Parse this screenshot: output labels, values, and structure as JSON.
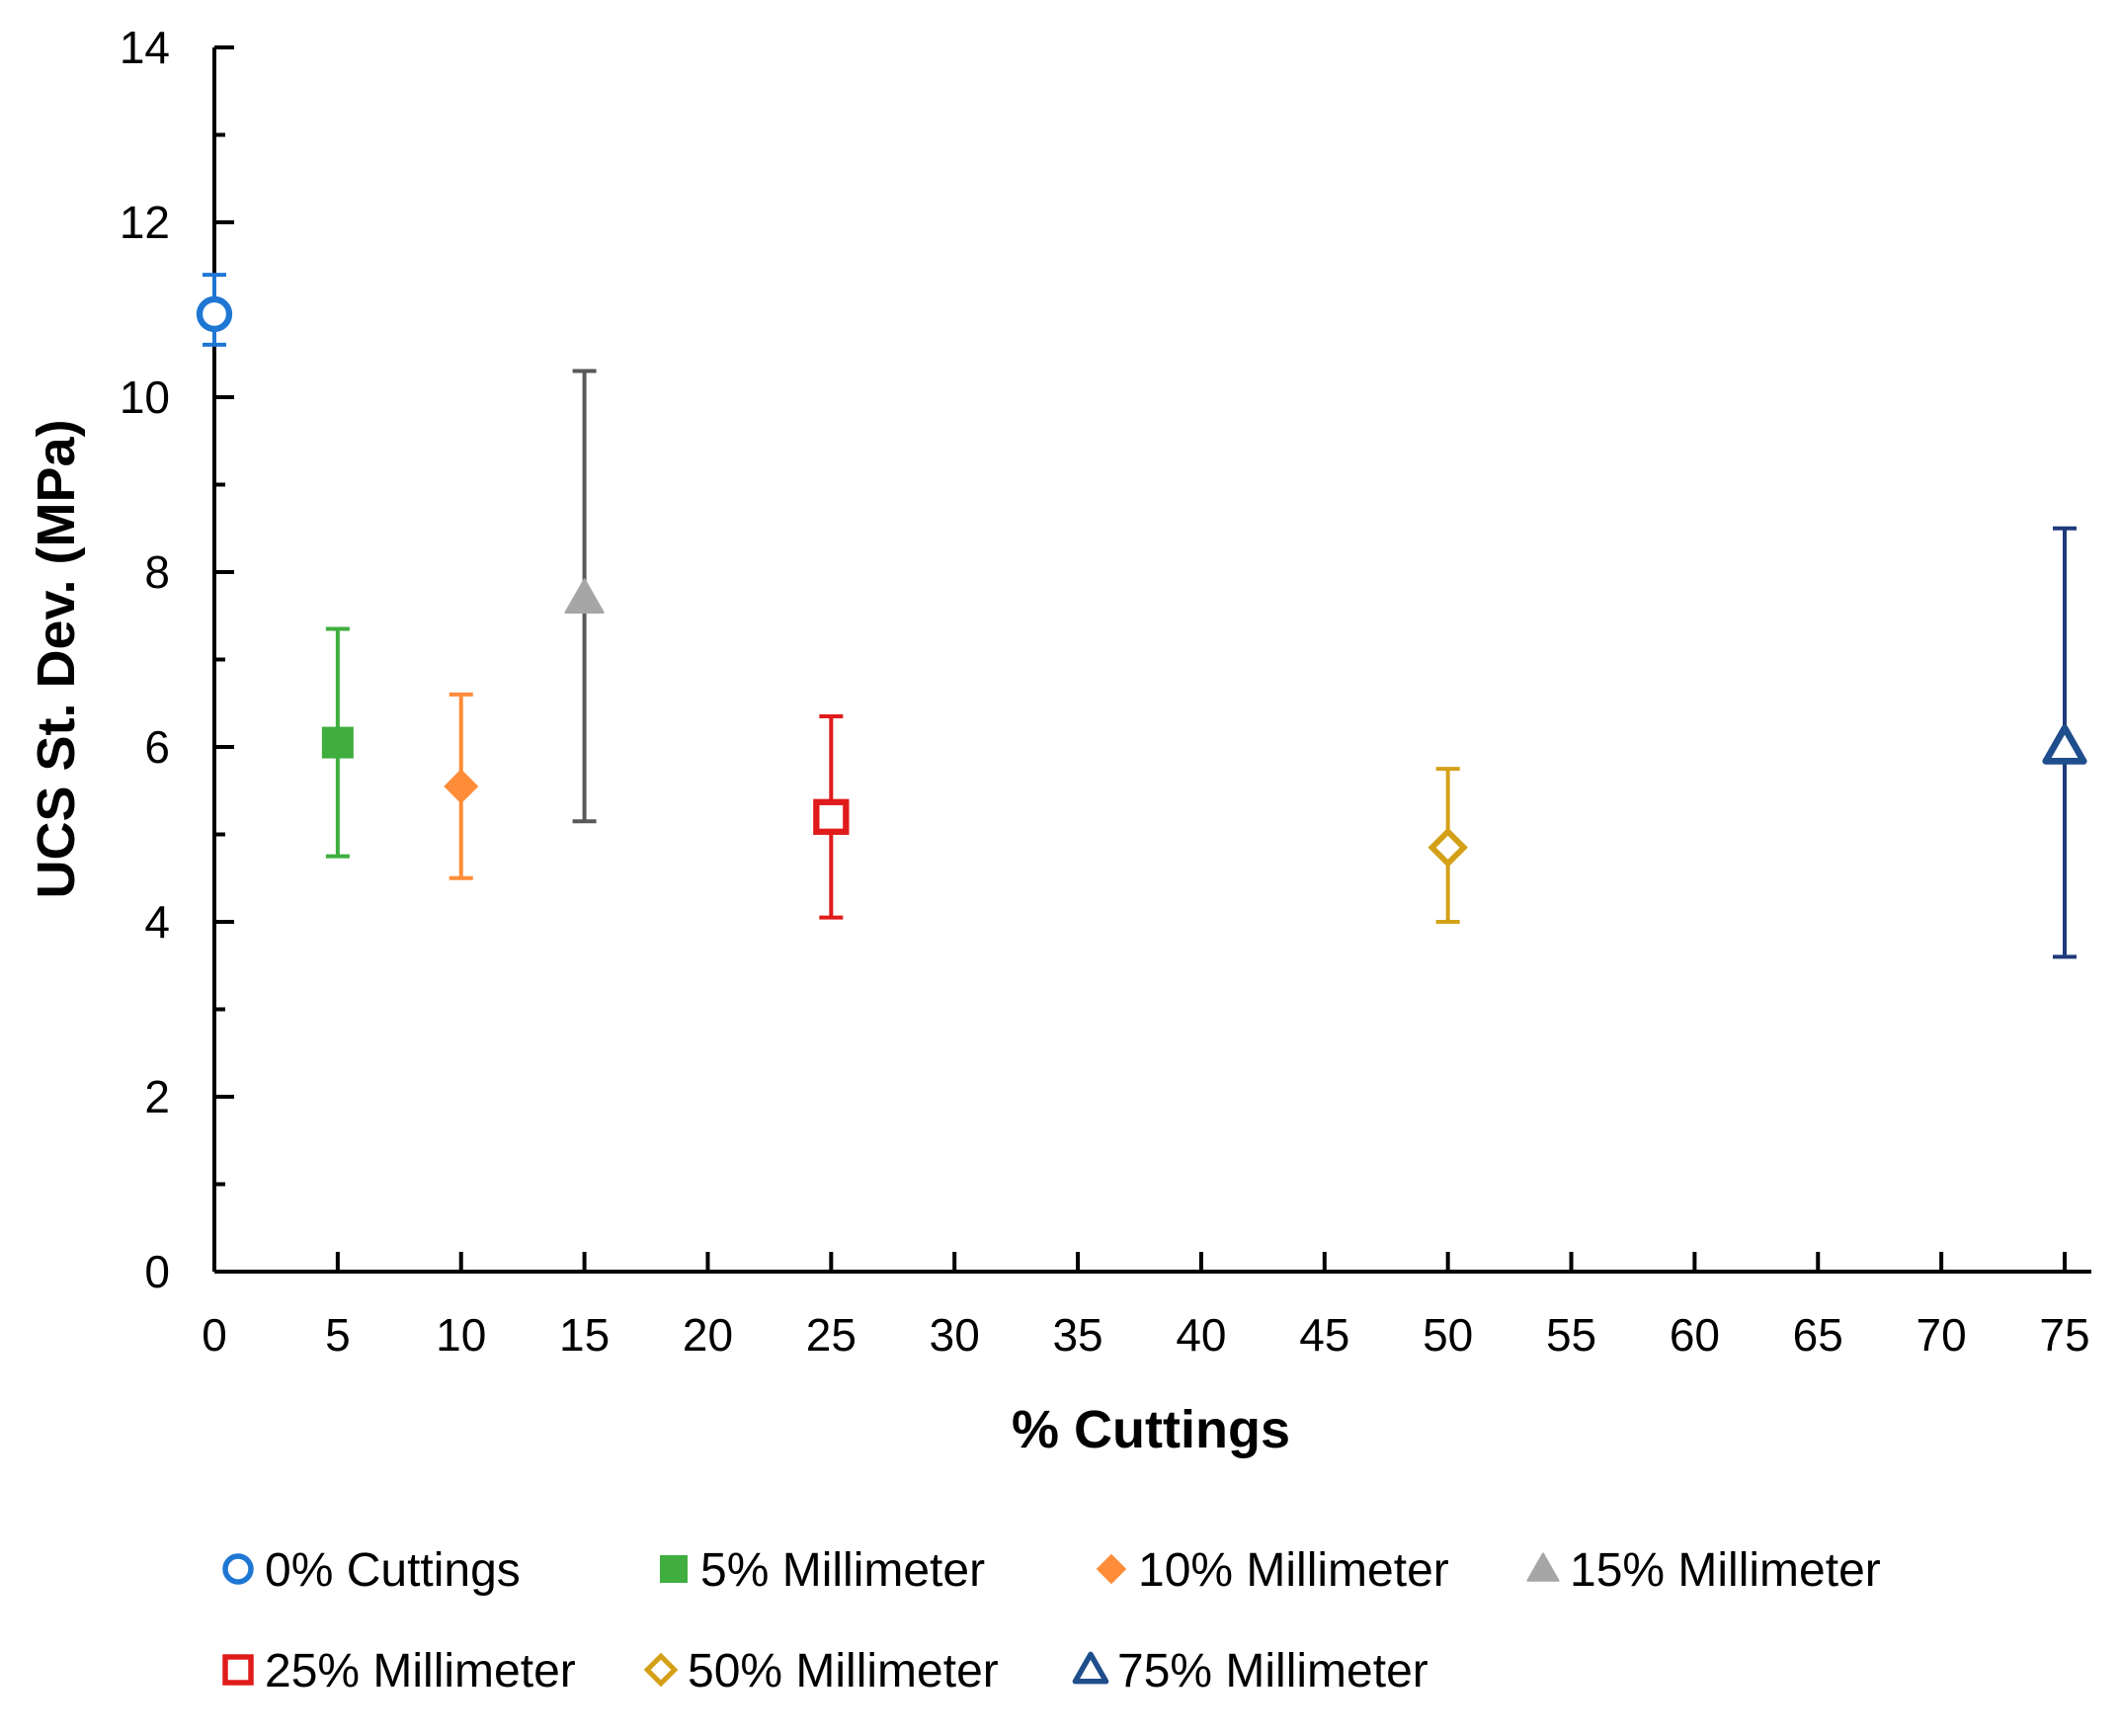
{
  "chart_data": {
    "type": "scatter",
    "xlabel": "% Cuttings",
    "ylabel": "UCS St. Dev. (MPa)",
    "xlim": [
      0,
      75
    ],
    "ylim": [
      0,
      14
    ],
    "x_ticks": [
      "0",
      "5",
      "10",
      "15",
      "20",
      "25",
      "30",
      "35",
      "40",
      "45",
      "50",
      "55",
      "60",
      "65",
      "70",
      "75"
    ],
    "y_ticks": [
      "0",
      "2",
      "4",
      "6",
      "8",
      "10",
      "12",
      "14"
    ],
    "grid": false,
    "legend_position": "bottom",
    "series": [
      {
        "name": "0% Cuttings",
        "x": 0,
        "y": 10.95,
        "err_low": 10.6,
        "err_high": 11.4,
        "marker": "circle-open",
        "color": "#1f77d4",
        "err_color": "#1f77d4"
      },
      {
        "name": "5% Millimeter",
        "x": 5,
        "y": 6.05,
        "err_low": 4.75,
        "err_high": 7.35,
        "marker": "square-filled",
        "color": "#3fae3f",
        "err_color": "#3fae3f"
      },
      {
        "name": "10% Millimeter",
        "x": 10,
        "y": 5.55,
        "err_low": 4.5,
        "err_high": 6.6,
        "marker": "diamond-filled",
        "color": "#ff8c38",
        "err_color": "#ff8c38"
      },
      {
        "name": "15% Millimeter",
        "x": 15,
        "y": 7.7,
        "err_low": 5.15,
        "err_high": 10.3,
        "marker": "triangle-filled",
        "color": "#a6a6a6",
        "err_color": "#595959"
      },
      {
        "name": "25% Millimeter",
        "x": 25,
        "y": 5.2,
        "err_low": 4.05,
        "err_high": 6.35,
        "marker": "square-open",
        "color": "#e01b1b",
        "err_color": "#e01b1b"
      },
      {
        "name": "50% Millimeter",
        "x": 50,
        "y": 4.85,
        "err_low": 4.0,
        "err_high": 5.75,
        "marker": "diamond-open",
        "color": "#d4a017",
        "err_color": "#d4a017"
      },
      {
        "name": "75% Millimeter",
        "x": 75,
        "y": 6.0,
        "err_low": 3.6,
        "err_high": 8.5,
        "marker": "triangle-open",
        "color": "#1f4e8c",
        "err_color": "#1f3a7a"
      }
    ]
  }
}
